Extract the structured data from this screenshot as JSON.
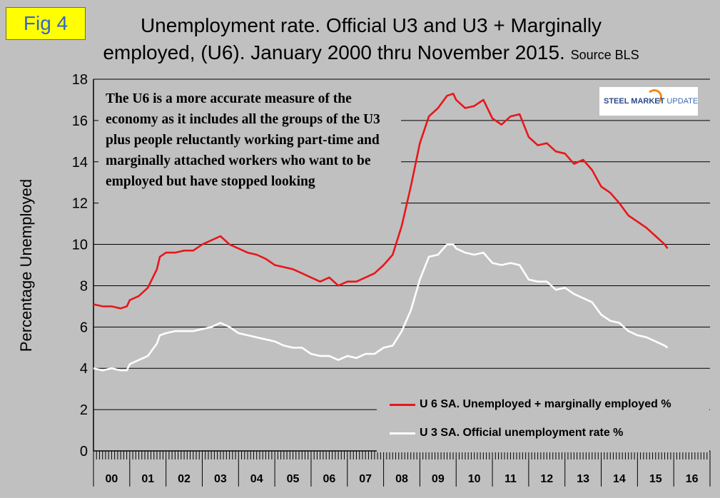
{
  "badge": "Fig 4",
  "title_line1": "Unemployment rate. Official U3 and U3 + Marginally",
  "title_line2": "employed, (U6). January 2000 thru November 2015.",
  "title_source": "Source BLS",
  "annotation": "The U6 is a more accurate measure of the economy as it includes all the groups of the U3 plus people reluctantly working part-time and marginally attached workers who want to be employed but have stopped looking",
  "logo": {
    "text_bold": "STEEL MARKET",
    "text_light": "UPDATE",
    "accent_color": "#f28a1c"
  },
  "colors": {
    "background": "#c0c0c0",
    "u6": "#e8161b",
    "u3": "#ffffff",
    "badge_bg": "#ffff00",
    "badge_text": "#3366cc"
  },
  "chart_data": {
    "type": "line",
    "ylabel": "Percentage Unemployed",
    "xlabel": "",
    "ylim": [
      0,
      18
    ],
    "yticks": [
      "0",
      "2",
      "4",
      "6",
      "8",
      "10",
      "12",
      "14",
      "16",
      "18"
    ],
    "xlim": [
      2000.0,
      2017.0
    ],
    "xticks": [
      "00",
      "01",
      "02",
      "03",
      "04",
      "05",
      "06",
      "07",
      "08",
      "09",
      "10",
      "11",
      "12",
      "13",
      "14",
      "15",
      "16"
    ],
    "grid": "horizontal",
    "legend_position": "bottom-right",
    "series": [
      {
        "name": "U 6 SA. Unemployed + marginally employed %",
        "color": "#e8161b",
        "x": [
          2000.0,
          2000.25,
          2000.5,
          2000.75,
          2000.92,
          2001.0,
          2001.25,
          2001.5,
          2001.75,
          2001.83,
          2002.0,
          2002.25,
          2002.5,
          2002.75,
          2003.0,
          2003.25,
          2003.5,
          2003.75,
          2004.0,
          2004.25,
          2004.5,
          2004.75,
          2005.0,
          2005.25,
          2005.5,
          2005.75,
          2006.0,
          2006.25,
          2006.5,
          2006.75,
          2007.0,
          2007.25,
          2007.5,
          2007.75,
          2008.0,
          2008.25,
          2008.5,
          2008.75,
          2009.0,
          2009.25,
          2009.5,
          2009.75,
          2009.92,
          2010.0,
          2010.25,
          2010.5,
          2010.75,
          2011.0,
          2011.25,
          2011.5,
          2011.75,
          2012.0,
          2012.25,
          2012.5,
          2012.75,
          2013.0,
          2013.25,
          2013.5,
          2013.75,
          2014.0,
          2014.25,
          2014.5,
          2014.75,
          2015.0,
          2015.25,
          2015.5,
          2015.75,
          2015.83
        ],
        "y": [
          7.1,
          7.0,
          7.0,
          6.9,
          7.0,
          7.3,
          7.5,
          7.9,
          8.8,
          9.4,
          9.6,
          9.6,
          9.7,
          9.7,
          10.0,
          10.2,
          10.4,
          10.0,
          9.8,
          9.6,
          9.5,
          9.3,
          9.0,
          8.9,
          8.8,
          8.6,
          8.4,
          8.2,
          8.4,
          8.0,
          8.2,
          8.2,
          8.4,
          8.6,
          9.0,
          9.5,
          10.9,
          12.8,
          14.9,
          16.2,
          16.6,
          17.2,
          17.3,
          17.0,
          16.6,
          16.7,
          17.0,
          16.1,
          15.8,
          16.2,
          16.3,
          15.2,
          14.8,
          14.9,
          14.5,
          14.4,
          13.9,
          14.1,
          13.6,
          12.8,
          12.5,
          12.0,
          11.4,
          11.1,
          10.8,
          10.4,
          10.0,
          9.8
        ]
      },
      {
        "name": "U 3 SA. Official unemployment rate %",
        "color": "#ffffff",
        "x": [
          2000.0,
          2000.25,
          2000.5,
          2000.75,
          2000.92,
          2001.0,
          2001.25,
          2001.5,
          2001.75,
          2001.83,
          2002.0,
          2002.25,
          2002.5,
          2002.75,
          2003.0,
          2003.25,
          2003.5,
          2003.75,
          2004.0,
          2004.25,
          2004.5,
          2004.75,
          2005.0,
          2005.25,
          2005.5,
          2005.75,
          2006.0,
          2006.25,
          2006.5,
          2006.75,
          2007.0,
          2007.25,
          2007.5,
          2007.75,
          2008.0,
          2008.25,
          2008.5,
          2008.75,
          2009.0,
          2009.25,
          2009.5,
          2009.75,
          2009.92,
          2010.0,
          2010.25,
          2010.5,
          2010.75,
          2011.0,
          2011.25,
          2011.5,
          2011.75,
          2012.0,
          2012.25,
          2012.5,
          2012.75,
          2013.0,
          2013.25,
          2013.5,
          2013.75,
          2014.0,
          2014.25,
          2014.5,
          2014.75,
          2015.0,
          2015.25,
          2015.5,
          2015.75,
          2015.83
        ],
        "y": [
          4.0,
          3.9,
          4.0,
          3.9,
          3.9,
          4.2,
          4.4,
          4.6,
          5.2,
          5.6,
          5.7,
          5.8,
          5.8,
          5.8,
          5.9,
          6.0,
          6.2,
          6.0,
          5.7,
          5.6,
          5.5,
          5.4,
          5.3,
          5.1,
          5.0,
          5.0,
          4.7,
          4.6,
          4.6,
          4.4,
          4.6,
          4.5,
          4.7,
          4.7,
          5.0,
          5.1,
          5.8,
          6.8,
          8.3,
          9.4,
          9.5,
          10.0,
          10.0,
          9.8,
          9.6,
          9.5,
          9.6,
          9.1,
          9.0,
          9.1,
          9.0,
          8.3,
          8.2,
          8.2,
          7.8,
          7.9,
          7.6,
          7.4,
          7.2,
          6.6,
          6.3,
          6.2,
          5.8,
          5.6,
          5.5,
          5.3,
          5.1,
          5.0
        ]
      }
    ]
  }
}
